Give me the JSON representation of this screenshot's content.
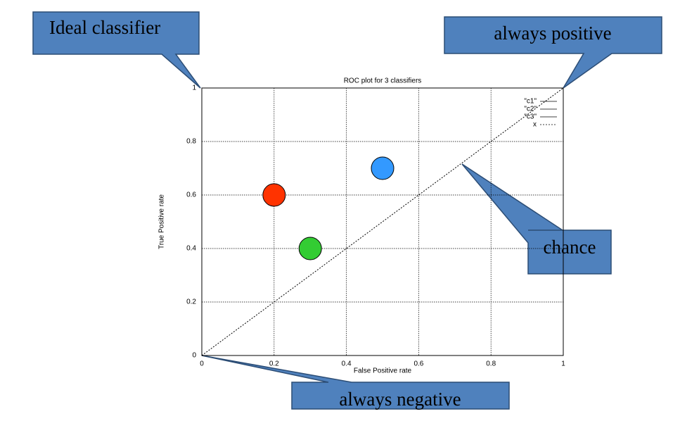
{
  "chart_data": {
    "type": "scatter",
    "title": "ROC plot for 3 classifiers",
    "xlabel": "False Positive rate",
    "ylabel": "True Positive rate",
    "xlim": [
      0,
      1
    ],
    "ylim": [
      0,
      1
    ],
    "xticks": [
      0,
      0.2,
      0.4,
      0.6,
      0.8,
      1
    ],
    "yticks": [
      0,
      0.2,
      0.4,
      0.6,
      0.8,
      1
    ],
    "grid": true,
    "legend": "upper right",
    "series": [
      {
        "name": "\"c1\"",
        "color": "#ff3300",
        "mode": "markers",
        "x": [
          0.2
        ],
        "values": [
          0.6
        ]
      },
      {
        "name": "\"c2\"",
        "color": "#33cc33",
        "mode": "markers",
        "x": [
          0.3
        ],
        "values": [
          0.4
        ]
      },
      {
        "name": "\"c3\"",
        "color": "#3399ff",
        "mode": "markers",
        "x": [
          0.5
        ],
        "values": [
          0.7
        ]
      },
      {
        "name": "x",
        "color": "#000000",
        "mode": "line",
        "x": [
          0,
          1
        ],
        "values": [
          0,
          1
        ]
      }
    ],
    "annotations": [
      "Ideal classifier",
      "always positive",
      "chance",
      "always negative"
    ]
  }
}
